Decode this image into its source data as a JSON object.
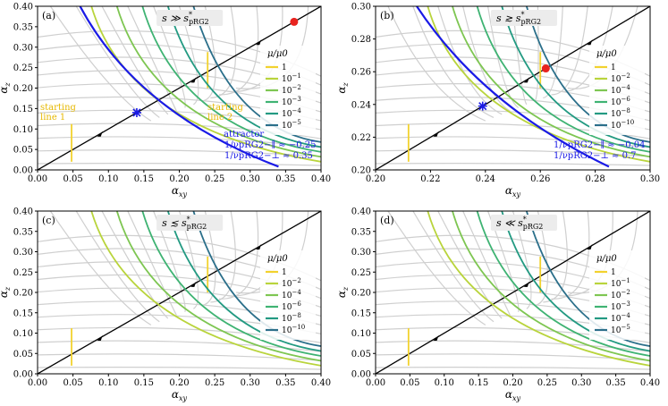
{
  "chart_data": [
    {
      "type": "line",
      "panel": "(a)",
      "title": "s ≫ s*pRG2",
      "title_main": "s ≫ s",
      "title_sup": "*",
      "title_sub": "pRG2",
      "xlabel": "α",
      "xlabel_sub": "xy",
      "ylabel": "α",
      "ylabel_sub": "z",
      "xlim": [
        0.0,
        0.4
      ],
      "ylim": [
        0.0,
        0.4
      ],
      "xticks": [
        "0.00",
        "0.05",
        "0.10",
        "0.15",
        "0.20",
        "0.25",
        "0.30",
        "0.35",
        "0.40"
      ],
      "yticks": [
        "0.00",
        "0.05",
        "0.10",
        "0.15",
        "0.20",
        "0.25",
        "0.30",
        "0.35",
        "0.40"
      ],
      "legend_title": "μ/μ0",
      "legend": [
        {
          "base": "1",
          "exp": "",
          "color": "#f2d22e"
        },
        {
          "base": "10",
          "exp": "−1",
          "color": "#b9d43c"
        },
        {
          "base": "10",
          "exp": "−2",
          "color": "#7ec652"
        },
        {
          "base": "10",
          "exp": "−3",
          "color": "#3fb373"
        },
        {
          "base": "10",
          "exp": "−4",
          "color": "#239a82"
        },
        {
          "base": "10",
          "exp": "−5",
          "color": "#2b6f8a"
        }
      ],
      "fixed_point": [
        0.362,
        0.362
      ],
      "attractor_point": [
        0.14,
        0.14
      ],
      "annotations": {
        "attractor": "attractor",
        "nu_par": "1/νpRG2−∥ ≈ −0.25",
        "nu_perp": "1/νpRG2−⊥ ≈ 0.35",
        "start1_l1": "starting",
        "start1_l2": "line 1",
        "start2_l1": "starting",
        "start2_l2": "line 2"
      }
    },
    {
      "type": "line",
      "panel": "(b)",
      "title": "s ≳ s*pRG2",
      "title_main": "s ≳ s",
      "title_sup": "*",
      "title_sub": "pRG2",
      "xlabel": "α",
      "xlabel_sub": "xy",
      "ylabel": "α",
      "ylabel_sub": "z",
      "xlim": [
        0.2,
        0.3
      ],
      "ylim": [
        0.2,
        0.3
      ],
      "xticks": [
        "0.20",
        "0.22",
        "0.24",
        "0.26",
        "0.28",
        "0.30"
      ],
      "yticks": [
        "0.20",
        "0.22",
        "0.24",
        "0.26",
        "0.28",
        "0.30"
      ],
      "legend_title": "μ/μ0",
      "legend": [
        {
          "base": "1",
          "exp": "",
          "color": "#f2d22e"
        },
        {
          "base": "10",
          "exp": "−2",
          "color": "#b9d43c"
        },
        {
          "base": "10",
          "exp": "−4",
          "color": "#7ec652"
        },
        {
          "base": "10",
          "exp": "−6",
          "color": "#3fb373"
        },
        {
          "base": "10",
          "exp": "−8",
          "color": "#239a82"
        },
        {
          "base": "10",
          "exp": "−10",
          "color": "#2b6f8a"
        }
      ],
      "fixed_point": [
        0.262,
        0.262
      ],
      "attractor_point": [
        0.239,
        0.239
      ],
      "annotations": {
        "nu_par": "1/νpRG2−∥ ≈ −0.04",
        "nu_perp": "1/νpRG2−⊥ ≈ 0.7"
      }
    },
    {
      "type": "line",
      "panel": "(c)",
      "title": "s ≲ s*pRG2",
      "title_main": "s ≲ s",
      "title_sup": "*",
      "title_sub": "pRG2",
      "xlabel": "α",
      "xlabel_sub": "xy",
      "ylabel": "α",
      "ylabel_sub": "z",
      "xlim": [
        0.0,
        0.4
      ],
      "ylim": [
        0.0,
        0.4
      ],
      "xticks": [
        "0.00",
        "0.05",
        "0.10",
        "0.15",
        "0.20",
        "0.25",
        "0.30",
        "0.35",
        "0.40"
      ],
      "yticks": [
        "0.00",
        "0.05",
        "0.10",
        "0.15",
        "0.20",
        "0.25",
        "0.30",
        "0.35",
        "0.40"
      ],
      "legend_title": "μ/μ0",
      "legend": [
        {
          "base": "1",
          "exp": "",
          "color": "#f2d22e"
        },
        {
          "base": "10",
          "exp": "−2",
          "color": "#b9d43c"
        },
        {
          "base": "10",
          "exp": "−4",
          "color": "#7ec652"
        },
        {
          "base": "10",
          "exp": "−6",
          "color": "#3fb373"
        },
        {
          "base": "10",
          "exp": "−8",
          "color": "#239a82"
        },
        {
          "base": "10",
          "exp": "−10",
          "color": "#2b6f8a"
        }
      ]
    },
    {
      "type": "line",
      "panel": "(d)",
      "title": "s ≪ s*pRG2",
      "title_main": "s ≪ s",
      "title_sup": "*",
      "title_sub": "pRG2",
      "xlabel": "α",
      "xlabel_sub": "xy",
      "ylabel": "α",
      "ylabel_sub": "z",
      "xlim": [
        0.0,
        0.4
      ],
      "ylim": [
        0.0,
        0.4
      ],
      "xticks": [
        "0.00",
        "0.05",
        "0.10",
        "0.15",
        "0.20",
        "0.25",
        "0.30",
        "0.35",
        "0.40"
      ],
      "yticks": [
        "0.00",
        "0.05",
        "0.10",
        "0.15",
        "0.20",
        "0.25",
        "0.30",
        "0.35",
        "0.40"
      ],
      "legend_title": "μ/μ0",
      "legend": [
        {
          "base": "1",
          "exp": "",
          "color": "#f2d22e"
        },
        {
          "base": "10",
          "exp": "−1",
          "color": "#b9d43c"
        },
        {
          "base": "10",
          "exp": "−2",
          "color": "#7ec652"
        },
        {
          "base": "10",
          "exp": "−3",
          "color": "#3fb373"
        },
        {
          "base": "10",
          "exp": "−4",
          "color": "#239a82"
        },
        {
          "base": "10",
          "exp": "−5",
          "color": "#2b6f8a"
        }
      ]
    }
  ]
}
